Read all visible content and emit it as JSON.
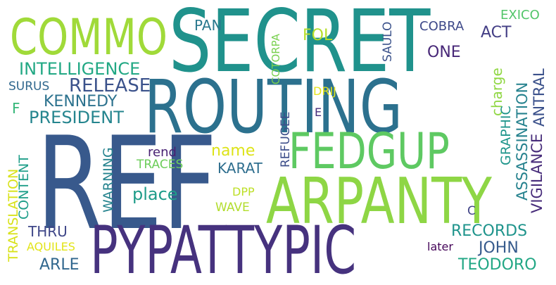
{
  "words": [
    {
      "text": "SECRET",
      "color": "#20928c",
      "rotate": false
    },
    {
      "text": "REF",
      "color": "#38598c",
      "rotate": false
    },
    {
      "text": "ROUTING",
      "color": "#2c718e",
      "rotate": false
    },
    {
      "text": "PYPATTYPIC",
      "color": "#46327e",
      "rotate": false
    },
    {
      "text": "ARPANTY",
      "color": "#8ed645",
      "rotate": false
    },
    {
      "text": "FEDGUP",
      "color": "#5ec962",
      "rotate": false
    },
    {
      "text": "COMMO",
      "color": "#a0da39",
      "rotate": false
    },
    {
      "text": "INTELLIGENCE",
      "color": "#22a884",
      "rotate": false
    },
    {
      "text": "RELEASE",
      "color": "#3b528b",
      "rotate": false
    },
    {
      "text": "KENNEDY",
      "color": "#2c728e",
      "rotate": false
    },
    {
      "text": "PRESIDENT",
      "color": "#25858e",
      "rotate": false
    },
    {
      "text": "SURUS",
      "color": "#31688e",
      "rotate": false
    },
    {
      "text": "F",
      "color": "#35b779",
      "rotate": false
    },
    {
      "text": "PAN",
      "color": "#2a788e",
      "rotate": false
    },
    {
      "text": "FOL",
      "color": "#b5de2b",
      "rotate": false
    },
    {
      "text": "ONE",
      "color": "#482878",
      "rotate": false
    },
    {
      "text": "COBRA",
      "color": "#3e4989",
      "rotate": false
    },
    {
      "text": "EXICO",
      "color": "#52c569",
      "rotate": false
    },
    {
      "text": "ACT",
      "color": "#433e85",
      "rotate": false
    },
    {
      "text": "DRIJ",
      "color": "#e5e419",
      "rotate": false
    },
    {
      "text": "E",
      "color": "#472d7b",
      "rotate": false
    },
    {
      "text": "name",
      "color": "#dde318",
      "rotate": false
    },
    {
      "text": "rend",
      "color": "#482173",
      "rotate": false
    },
    {
      "text": "TRACES",
      "color": "#6ccd5a",
      "rotate": false
    },
    {
      "text": "KARAT",
      "color": "#2e6e8e",
      "rotate": false
    },
    {
      "text": "place",
      "color": "#1e9c89",
      "rotate": false
    },
    {
      "text": "DPP",
      "color": "#bddf26",
      "rotate": false
    },
    {
      "text": "WAVE",
      "color": "#b2dd2d",
      "rotate": false
    },
    {
      "text": "C",
      "color": "#414487",
      "rotate": false
    },
    {
      "text": "THRU",
      "color": "#3f4788",
      "rotate": false
    },
    {
      "text": "AQUILES",
      "color": "#e2e418",
      "rotate": false
    },
    {
      "text": "ARLE",
      "color": "#31678e",
      "rotate": false
    },
    {
      "text": "RECORDS",
      "color": "#1f948c",
      "rotate": false
    },
    {
      "text": "JOHN",
      "color": "#375b8d",
      "rotate": false
    },
    {
      "text": "later",
      "color": "#450559",
      "rotate": false
    },
    {
      "text": "TEODORO",
      "color": "#22a785",
      "rotate": false
    },
    {
      "text": "TRANSLATION",
      "color": "#d8e219",
      "rotate": true
    },
    {
      "text": "CONTENT",
      "color": "#1f9e89",
      "rotate": true
    },
    {
      "text": "WARNING",
      "color": "#25838e",
      "rotate": true
    },
    {
      "text": "REFUGEE",
      "color": "#3d4e8a",
      "rotate": true
    },
    {
      "text": "COTORPA",
      "color": "#7ad151",
      "rotate": true
    },
    {
      "text": "SAULO",
      "color": "#3b528b",
      "rotate": true
    },
    {
      "text": "charge",
      "color": "#90d743",
      "rotate": true
    },
    {
      "text": "GRAPHIC",
      "color": "#1f958b",
      "rotate": true
    },
    {
      "text": "ASSASSINATION",
      "color": "#26828e",
      "rotate": true
    },
    {
      "text": "VIGILANCE",
      "color": "#472c7a",
      "rotate": true
    },
    {
      "text": "ANTRAL",
      "color": "#3b518b",
      "rotate": true
    }
  ]
}
